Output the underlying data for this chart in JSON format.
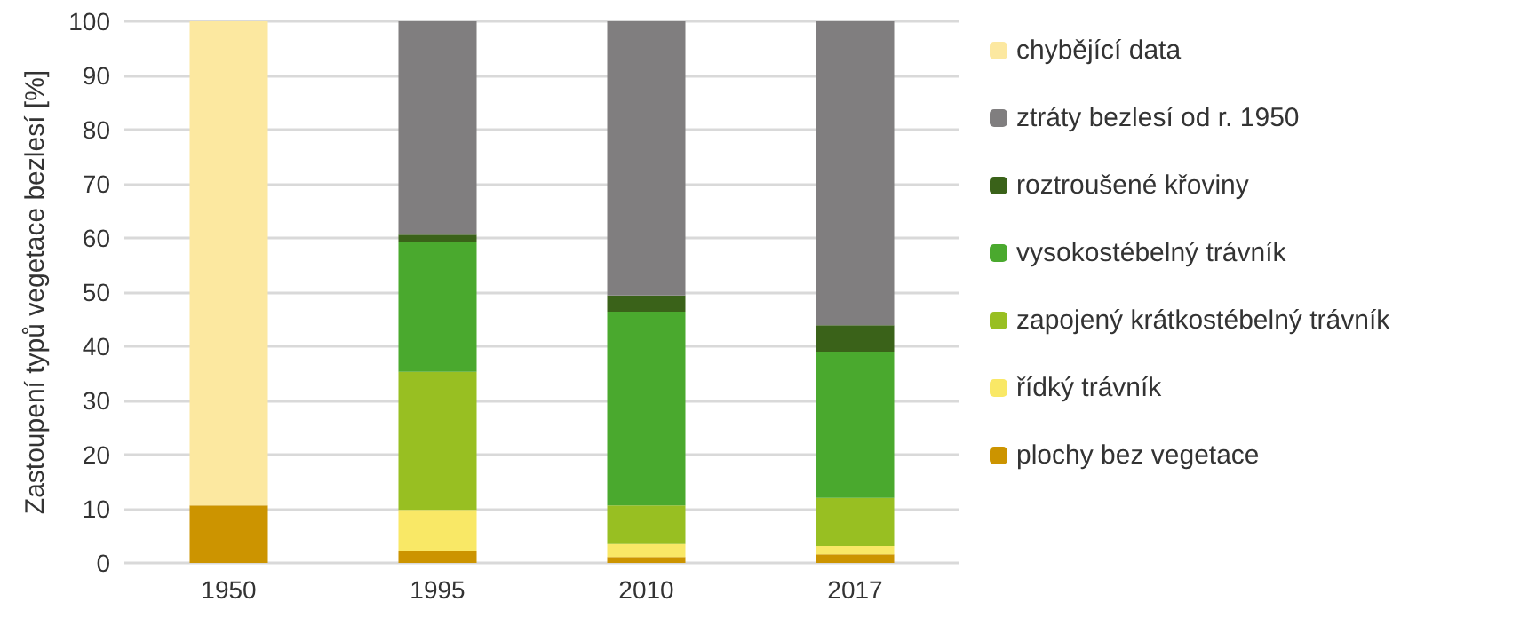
{
  "chart_data": {
    "type": "bar",
    "stacked": true,
    "ylabel": "Zastoupení typů vegetace bezlesí [%]",
    "categories": [
      "1950",
      "1995",
      "2010",
      "2017"
    ],
    "series": [
      {
        "name": "plochy bez vegetace",
        "color": "#cc9400",
        "values": [
          10.6,
          2.2,
          1.1,
          1.6
        ]
      },
      {
        "name": "řídký trávník",
        "color": "#f9e866",
        "values": [
          null,
          7.6,
          2.4,
          1.5
        ]
      },
      {
        "name": "zapojený krátkostébelný trávník",
        "color": "#98bf22",
        "values": [
          null,
          25.5,
          7.1,
          8.9
        ]
      },
      {
        "name": "vysokostébelný trávník",
        "color": "#4aa92e",
        "values": [
          null,
          23.9,
          35.8,
          27.0
        ]
      },
      {
        "name": "roztroušené křoviny",
        "color": "#3a6219",
        "values": [
          null,
          1.4,
          3.0,
          4.9
        ]
      },
      {
        "name": "ztráty bezlesí od r. 1950",
        "color": "#807e7f",
        "values": [
          null,
          39.4,
          50.6,
          56.1
        ]
      },
      {
        "name": "chybějící data",
        "color": "#fce8a0",
        "values": [
          89.4,
          null,
          null,
          null
        ]
      }
    ],
    "ylim": [
      0,
      100
    ],
    "yticks": [
      0,
      10,
      20,
      30,
      40,
      50,
      60,
      70,
      80,
      90,
      100
    ],
    "grid": "y",
    "legend": "right"
  }
}
